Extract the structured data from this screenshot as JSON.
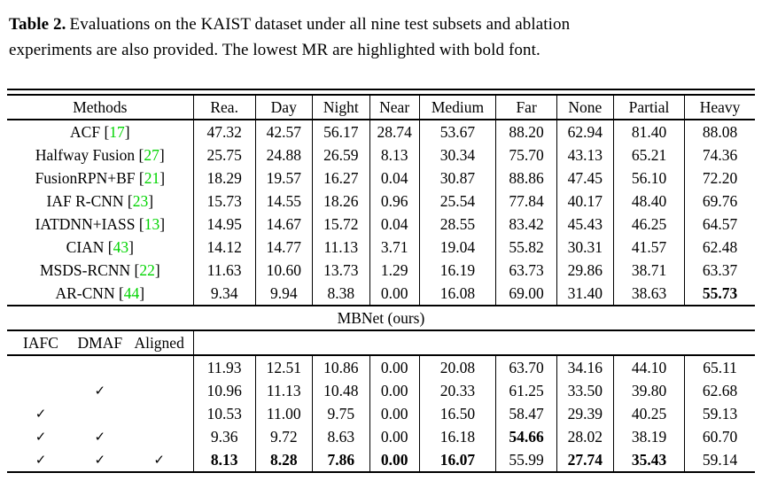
{
  "caption": {
    "label": "Table 2.",
    "line1": "Evaluations on the KAIST dataset under all nine test subsets and ablation",
    "line2": "experiments are also provided. The lowest MR are highlighted with bold font."
  },
  "colors": {
    "citation_green": "#00d400",
    "rule_black": "#000000"
  },
  "check_glyph": "✓",
  "table": {
    "columns": [
      "Methods",
      "Rea.",
      "Day",
      "Night",
      "Near",
      "Medium",
      "Far",
      "None",
      "Partial",
      "Heavy"
    ],
    "methods_rows": [
      {
        "name": "ACF",
        "cite": "17",
        "values": [
          "47.32",
          "42.57",
          "56.17",
          "28.74",
          "53.67",
          "88.20",
          "62.94",
          "81.40",
          "88.08"
        ],
        "bold_indices": []
      },
      {
        "name": "Halfway Fusion",
        "cite": "27",
        "values": [
          "25.75",
          "24.88",
          "26.59",
          "8.13",
          "30.34",
          "75.70",
          "43.13",
          "65.21",
          "74.36"
        ],
        "bold_indices": []
      },
      {
        "name": "FusionRPN+BF",
        "cite": "21",
        "values": [
          "18.29",
          "19.57",
          "16.27",
          "0.04",
          "30.87",
          "88.86",
          "47.45",
          "56.10",
          "72.20"
        ],
        "bold_indices": []
      },
      {
        "name": "IAF R-CNN",
        "cite": "23",
        "values": [
          "15.73",
          "14.55",
          "18.26",
          "0.96",
          "25.54",
          "77.84",
          "40.17",
          "48.40",
          "69.76"
        ],
        "bold_indices": []
      },
      {
        "name": "IATDNN+IASS",
        "cite": "13",
        "values": [
          "14.95",
          "14.67",
          "15.72",
          "0.04",
          "28.55",
          "83.42",
          "45.43",
          "46.25",
          "64.57"
        ],
        "bold_indices": []
      },
      {
        "name": "CIAN",
        "cite": "43",
        "values": [
          "14.12",
          "14.77",
          "11.13",
          "3.71",
          "19.04",
          "55.82",
          "30.31",
          "41.57",
          "62.48"
        ],
        "bold_indices": []
      },
      {
        "name": "MSDS-RCNN",
        "cite": "22",
        "values": [
          "11.63",
          "10.60",
          "13.73",
          "1.29",
          "16.19",
          "63.73",
          "29.86",
          "38.71",
          "63.37"
        ],
        "bold_indices": []
      },
      {
        "name": "AR-CNN",
        "cite": "44",
        "values": [
          "9.34",
          "9.94",
          "8.38",
          "0.00",
          "16.08",
          "69.00",
          "31.40",
          "38.63",
          "55.73"
        ],
        "bold_indices": [
          8
        ]
      }
    ],
    "section_header": "MBNet (ours)",
    "ablation_columns": [
      "IAFC",
      "DMAF",
      "Aligned"
    ],
    "ablation_rows": [
      {
        "checks": [
          false,
          false,
          false
        ],
        "values": [
          "11.93",
          "12.51",
          "10.86",
          "0.00",
          "20.08",
          "63.70",
          "34.16",
          "44.10",
          "65.11"
        ],
        "bold_indices": []
      },
      {
        "checks": [
          false,
          true,
          false
        ],
        "values": [
          "10.96",
          "11.13",
          "10.48",
          "0.00",
          "20.33",
          "61.25",
          "33.50",
          "39.80",
          "62.68"
        ],
        "bold_indices": []
      },
      {
        "checks": [
          true,
          false,
          false
        ],
        "values": [
          "10.53",
          "11.00",
          "9.75",
          "0.00",
          "16.50",
          "58.47",
          "29.39",
          "40.25",
          "59.13"
        ],
        "bold_indices": []
      },
      {
        "checks": [
          true,
          true,
          false
        ],
        "values": [
          "9.36",
          "9.72",
          "8.63",
          "0.00",
          "16.18",
          "54.66",
          "28.02",
          "38.19",
          "60.70"
        ],
        "bold_indices": [
          5
        ]
      },
      {
        "checks": [
          true,
          true,
          true
        ],
        "values": [
          "8.13",
          "8.28",
          "7.86",
          "0.00",
          "16.07",
          "55.99",
          "27.74",
          "35.43",
          "59.14"
        ],
        "bold_indices": [
          0,
          1,
          2,
          3,
          4,
          6,
          7
        ]
      }
    ]
  }
}
